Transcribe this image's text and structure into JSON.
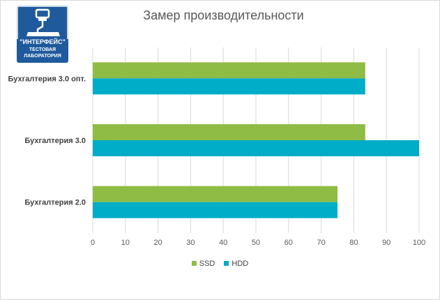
{
  "logo": {
    "name": "\"ИНТЕРФЕЙС\"",
    "sub_line1": "ТЕСТОВАЯ",
    "sub_line2": "ЛАБОРАТОРИЯ",
    "color": "#1f5a9c"
  },
  "chart_data": {
    "type": "bar",
    "orientation": "horizontal",
    "title": "Замер производительности",
    "categories": [
      "Бухгалтерия 3.0 опт.",
      "Бухгалтерия 3.0",
      "Бухгалтерия 2.0"
    ],
    "series": [
      {
        "name": "SSD",
        "color": "#8fbc44",
        "values": [
          83.5,
          83.5,
          75
        ]
      },
      {
        "name": "HDD",
        "color": "#00adc8",
        "values": [
          83.5,
          100,
          75
        ]
      }
    ],
    "xlim": [
      0,
      100
    ],
    "xticks": [
      0,
      10,
      20,
      30,
      40,
      50,
      60,
      70,
      80,
      90,
      100
    ],
    "grid": true,
    "legend": "bottom"
  }
}
